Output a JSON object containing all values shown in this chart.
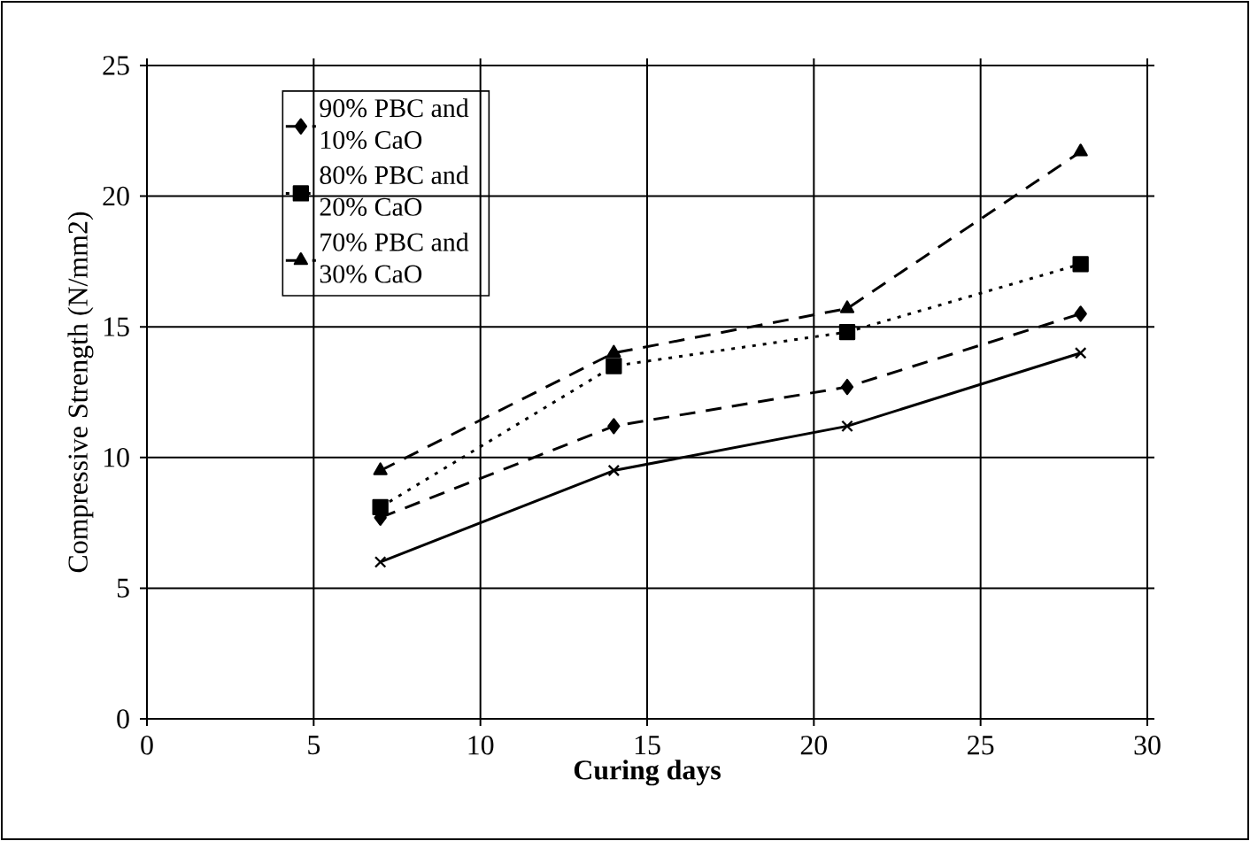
{
  "chart_data": {
    "type": "line",
    "xlabel": "Curing days",
    "ylabel": "Compressive Strength (N/mm2)",
    "x": [
      7,
      14,
      21,
      28
    ],
    "series": [
      {
        "name": "90% PBC and 10% CaO",
        "color": "#000000",
        "values": [
          7.7,
          11.2,
          12.7,
          15.5
        ],
        "marker": "diamond",
        "line_style": "dashed"
      },
      {
        "name": "80% PBC and 20% CaO",
        "color": "#000000",
        "values": [
          8.1,
          13.5,
          14.8,
          17.4
        ],
        "marker": "square",
        "line_style": "dotted"
      },
      {
        "name": "70% PBC and 30% CaO",
        "color": "#000000",
        "values": [
          9.5,
          14.0,
          15.7,
          21.7
        ],
        "marker": "triangle",
        "line_style": "dashed"
      },
      {
        "color": "#000000",
        "values": [
          6.0,
          9.5,
          11.2,
          14.0
        ],
        "marker": "cross",
        "line_style": "solid"
      }
    ],
    "xlim": [
      0,
      30
    ],
    "ylim": [
      0,
      25
    ],
    "xticks": [
      0,
      5,
      10,
      15,
      20,
      25,
      30
    ],
    "yticks": [
      0,
      5,
      10,
      15,
      20,
      25
    ],
    "grid": true,
    "legend": "top left"
  }
}
